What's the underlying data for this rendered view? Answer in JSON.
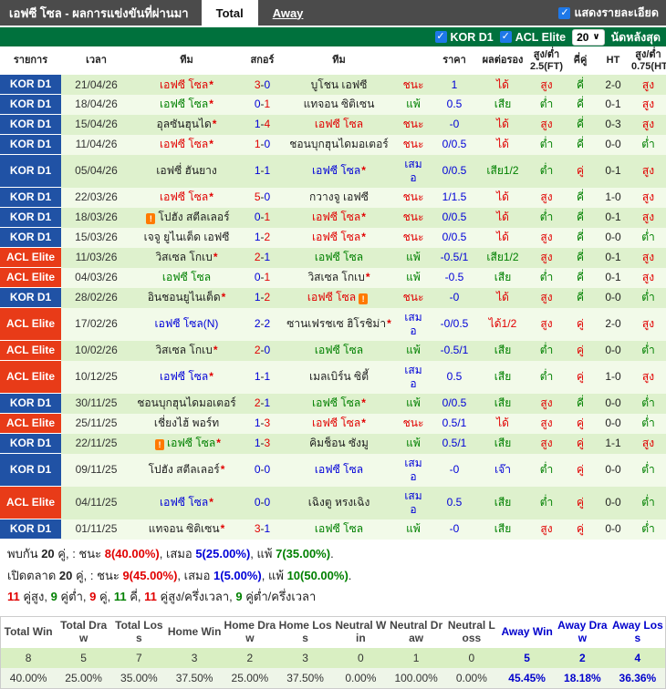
{
  "colors": {
    "titlebar_bg": "#4b4b4b",
    "filterbar_bg": "#00713d",
    "kor_d1_bg": "#2052a5",
    "acl_elite_bg": "#e83b18",
    "win_red": "#e10000",
    "loss_green": "#008000",
    "draw_blue": "#0000d8",
    "checkbox_blue": "#1e78e8",
    "row_odd_bg": "#def1cd",
    "row_even_bg": "#f2fae9"
  },
  "icons": {
    "check": "✓",
    "chevron_down": "∨",
    "card": "!"
  },
  "titlebar": {
    "title": "เอฟซี โซล - ผลการแข่งขันที่ผ่านมา",
    "tabs": [
      {
        "label": "Total",
        "active": true
      },
      {
        "label": "Away",
        "active": false
      }
    ],
    "detail_checkbox": {
      "label": "แสดงรายละเอียด",
      "checked": true
    }
  },
  "filterbar": {
    "leagues": [
      {
        "label": "KOR D1",
        "checked": true
      },
      {
        "label": "ACL Elite",
        "checked": true
      }
    ],
    "count_select": {
      "value": "20"
    },
    "suffix": "นัดหลังสุด"
  },
  "table": {
    "columns": [
      "รายการ",
      "เวลา",
      "ทีม",
      "สกอร์",
      "ทีม",
      "",
      "ราคา",
      "ผลต่อรอง",
      "สูง/ต่ำ 2.5(FT)",
      "คี่คู่",
      "HT",
      "สูง/ต่ำ 0.75(HT)"
    ],
    "rows": [
      {
        "lg": "KOR D1",
        "date": "21/04/26",
        "home": {
          "n": "เอฟซี โซล",
          "star": true,
          "c": "red"
        },
        "score": [
          "3",
          "0",
          "red",
          "blue"
        ],
        "away": {
          "n": "บูโชน เอฟซี",
          "c": "black"
        },
        "res": "ชนะ",
        "price": "1",
        "hres": "ได้",
        "ou25": "สูง",
        "oe": "คี่",
        "ht": "2-0",
        "ou075": "สูง"
      },
      {
        "lg": "KOR D1",
        "date": "18/04/26",
        "home": {
          "n": "เอฟซี โซล",
          "star": true,
          "c": "green"
        },
        "score": [
          "0",
          "1",
          "blue",
          "red"
        ],
        "away": {
          "n": "แทจอน ซิติเซน",
          "c": "black"
        },
        "res": "แพ้",
        "price": "0.5",
        "hres": "เสีย",
        "ou25": "ต่ำ",
        "oe": "คี่",
        "ht": "0-1",
        "ou075": "สูง"
      },
      {
        "lg": "KOR D1",
        "date": "15/04/26",
        "home": {
          "n": "อุลซันฮุนได",
          "star": true,
          "c": "black"
        },
        "score": [
          "1",
          "4",
          "blue",
          "red"
        ],
        "away": {
          "n": "เอฟซี โซล",
          "c": "red"
        },
        "res": "ชนะ",
        "price": "-0",
        "hres": "ได้",
        "ou25": "สูง",
        "oe": "คี่",
        "ht": "0-3",
        "ou075": "สูง"
      },
      {
        "lg": "KOR D1",
        "date": "11/04/26",
        "home": {
          "n": "เอฟซี โซล",
          "star": true,
          "c": "red"
        },
        "score": [
          "1",
          "0",
          "red",
          "blue"
        ],
        "away": {
          "n": "ชอนบุกฮุนไดมอเตอร์",
          "c": "black"
        },
        "res": "ชนะ",
        "price": "0/0.5",
        "hres": "ได้",
        "ou25": "ต่ำ",
        "oe": "คี่",
        "ht": "0-0",
        "ou075": "ต่ำ"
      },
      {
        "lg": "KOR D1",
        "date": "05/04/26",
        "home": {
          "n": "เอฟซี่ ฮันยาง",
          "c": "black"
        },
        "score": [
          "1",
          "1",
          "blue",
          "blue"
        ],
        "away": {
          "n": "เอฟซี โซล",
          "star": true,
          "c": "blue"
        },
        "res": "เสมอ",
        "price": "0/0.5",
        "hres": "เสีย1/2",
        "ou25": "ต่ำ",
        "oe": "คู่",
        "ht": "0-1",
        "ou075": "สูง"
      },
      {
        "lg": "KOR D1",
        "date": "22/03/26",
        "home": {
          "n": "เอฟซี โซล",
          "star": true,
          "c": "red"
        },
        "score": [
          "5",
          "0",
          "red",
          "blue"
        ],
        "away": {
          "n": "กวางจู เอฟซี",
          "c": "black"
        },
        "res": "ชนะ",
        "price": "1/1.5",
        "hres": "ได้",
        "ou25": "สูง",
        "oe": "คี่",
        "ht": "1-0",
        "ou075": "สูง"
      },
      {
        "lg": "KOR D1",
        "date": "18/03/26",
        "home": {
          "n": "โปฮัง สตีลเลอร์",
          "c": "black",
          "icon": "before"
        },
        "score": [
          "0",
          "1",
          "blue",
          "red"
        ],
        "away": {
          "n": "เอฟซี โซล",
          "star": true,
          "c": "red"
        },
        "res": "ชนะ",
        "price": "0/0.5",
        "hres": "ได้",
        "ou25": "ต่ำ",
        "oe": "คี่",
        "ht": "0-1",
        "ou075": "สูง"
      },
      {
        "lg": "KOR D1",
        "date": "15/03/26",
        "home": {
          "n": "เจจู ยูไนเต็ด เอฟซี",
          "c": "black"
        },
        "score": [
          "1",
          "2",
          "blue",
          "red"
        ],
        "away": {
          "n": "เอฟซี โซล",
          "star": true,
          "c": "red"
        },
        "res": "ชนะ",
        "price": "0/0.5",
        "hres": "ได้",
        "ou25": "สูง",
        "oe": "คี่",
        "ht": "0-0",
        "ou075": "ต่ำ"
      },
      {
        "lg": "ACL Elite",
        "date": "11/03/26",
        "home": {
          "n": "วิสเซล โกเบ",
          "star": true,
          "c": "black"
        },
        "score": [
          "2",
          "1",
          "red",
          "blue"
        ],
        "away": {
          "n": "เอฟซี โซล",
          "c": "green"
        },
        "res": "แพ้",
        "price": "-0.5/1",
        "hres": "เสีย1/2",
        "ou25": "สูง",
        "oe": "คี่",
        "ht": "0-1",
        "ou075": "สูง"
      },
      {
        "lg": "ACL Elite",
        "date": "04/03/26",
        "home": {
          "n": "เอฟซี โซล",
          "c": "green"
        },
        "score": [
          "0",
          "1",
          "blue",
          "red"
        ],
        "away": {
          "n": "วิสเซล โกเบ",
          "star": true,
          "c": "black"
        },
        "res": "แพ้",
        "price": "-0.5",
        "hres": "เสีย",
        "ou25": "ต่ำ",
        "oe": "คี่",
        "ht": "0-1",
        "ou075": "สูง"
      },
      {
        "lg": "KOR D1",
        "date": "28/02/26",
        "home": {
          "n": "อินชอนยูไนเต็ด",
          "star": true,
          "c": "black"
        },
        "score": [
          "1",
          "2",
          "blue",
          "red"
        ],
        "away": {
          "n": "เอฟซี โซล",
          "c": "red",
          "icon": "after"
        },
        "res": "ชนะ",
        "price": "-0",
        "hres": "ได้",
        "ou25": "สูง",
        "oe": "คี่",
        "ht": "0-0",
        "ou075": "ต่ำ"
      },
      {
        "lg": "ACL Elite",
        "date": "17/02/26",
        "home": {
          "n": "เอฟซี โซล(N)",
          "c": "blue"
        },
        "score": [
          "2",
          "2",
          "blue",
          "blue"
        ],
        "away": {
          "n": "ซานเฟรชเซ ฮิโรชิม่า",
          "star": true,
          "c": "black"
        },
        "res": "เสมอ",
        "price": "-0/0.5",
        "hres": "ได้1/2",
        "ou25": "สูง",
        "oe": "คู่",
        "ht": "2-0",
        "ou075": "สูง"
      },
      {
        "lg": "ACL Elite",
        "date": "10/02/26",
        "home": {
          "n": "วิสเซล โกเบ",
          "star": true,
          "c": "black"
        },
        "score": [
          "2",
          "0",
          "red",
          "blue"
        ],
        "away": {
          "n": "เอฟซี โซล",
          "c": "green"
        },
        "res": "แพ้",
        "price": "-0.5/1",
        "hres": "เสีย",
        "ou25": "ต่ำ",
        "oe": "คู่",
        "ht": "0-0",
        "ou075": "ต่ำ"
      },
      {
        "lg": "ACL Elite",
        "date": "10/12/25",
        "home": {
          "n": "เอฟซี โซล",
          "star": true,
          "c": "blue"
        },
        "score": [
          "1",
          "1",
          "blue",
          "blue"
        ],
        "away": {
          "n": "เมลเบิร์น ซิตี้",
          "c": "black"
        },
        "res": "เสมอ",
        "price": "0.5",
        "hres": "เสีย",
        "ou25": "ต่ำ",
        "oe": "คู่",
        "ht": "1-0",
        "ou075": "สูง"
      },
      {
        "lg": "KOR D1",
        "date": "30/11/25",
        "home": {
          "n": "ชอนบุกฮุนไดมอเตอร์",
          "c": "black"
        },
        "score": [
          "2",
          "1",
          "red",
          "blue"
        ],
        "away": {
          "n": "เอฟซี โซล",
          "star": true,
          "c": "green"
        },
        "res": "แพ้",
        "price": "0/0.5",
        "hres": "เสีย",
        "ou25": "สูง",
        "oe": "คี่",
        "ht": "0-0",
        "ou075": "ต่ำ"
      },
      {
        "lg": "ACL Elite",
        "date": "25/11/25",
        "home": {
          "n": "เชี่ยงไฮ้ พอร์ท",
          "c": "black"
        },
        "score": [
          "1",
          "3",
          "blue",
          "red"
        ],
        "away": {
          "n": "เอฟซี โซล",
          "star": true,
          "c": "red"
        },
        "res": "ชนะ",
        "price": "0.5/1",
        "hres": "ได้",
        "ou25": "สูง",
        "oe": "คู่",
        "ht": "0-0",
        "ou075": "ต่ำ"
      },
      {
        "lg": "KOR D1",
        "date": "22/11/25",
        "home": {
          "n": "เอฟซี โซล",
          "star": true,
          "c": "green",
          "icon": "before"
        },
        "score": [
          "1",
          "3",
          "blue",
          "red"
        ],
        "away": {
          "n": "คิมช็อน ซังมู",
          "c": "black"
        },
        "res": "แพ้",
        "price": "0.5/1",
        "hres": "เสีย",
        "ou25": "สูง",
        "oe": "คู่",
        "ht": "1-1",
        "ou075": "สูง"
      },
      {
        "lg": "KOR D1",
        "date": "09/11/25",
        "home": {
          "n": "โปฮัง สตีลเลอร์",
          "star": true,
          "c": "black"
        },
        "score": [
          "0",
          "0",
          "blue",
          "blue"
        ],
        "away": {
          "n": "เอฟซี โซล",
          "c": "blue"
        },
        "res": "เสมอ",
        "price": "-0",
        "hres": "เจ๊า",
        "ou25": "ต่ำ",
        "oe": "คู่",
        "ht": "0-0",
        "ou075": "ต่ำ"
      },
      {
        "lg": "ACL Elite",
        "date": "04/11/25",
        "home": {
          "n": "เอฟซี โซล",
          "star": true,
          "c": "blue"
        },
        "score": [
          "0",
          "0",
          "blue",
          "blue"
        ],
        "away": {
          "n": "เฉิงตู หรงเฉิง",
          "c": "black"
        },
        "res": "เสมอ",
        "price": "0.5",
        "hres": "เสีย",
        "ou25": "ต่ำ",
        "oe": "คู่",
        "ht": "0-0",
        "ou075": "ต่ำ"
      },
      {
        "lg": "KOR D1",
        "date": "01/11/25",
        "home": {
          "n": "แทจอน ซิติเซน",
          "star": true,
          "c": "black"
        },
        "score": [
          "3",
          "1",
          "red",
          "blue"
        ],
        "away": {
          "n": "เอฟซี โซล",
          "c": "green"
        },
        "res": "แพ้",
        "price": "-0",
        "hres": "เสีย",
        "ou25": "สูง",
        "oe": "คู่",
        "ht": "0-0",
        "ou075": "ต่ำ"
      }
    ]
  },
  "summary": {
    "lines": [
      [
        {
          "t": "พบกัน ",
          "c": "dark",
          "b": false
        },
        {
          "t": "20",
          "c": "dark",
          "b": true
        },
        {
          "t": " คู่, : ชนะ ",
          "c": "dark",
          "b": false
        },
        {
          "t": "8(40.00%)",
          "c": "red",
          "b": true
        },
        {
          "t": ", เสมอ ",
          "c": "dark",
          "b": false
        },
        {
          "t": "5(25.00%)",
          "c": "blue",
          "b": true
        },
        {
          "t": ", แพ้ ",
          "c": "dark",
          "b": false
        },
        {
          "t": "7(35.00%)",
          "c": "green",
          "b": true
        },
        {
          "t": ".",
          "c": "dark",
          "b": false
        }
      ],
      [
        {
          "t": "เปิดตลาด ",
          "c": "dark",
          "b": false
        },
        {
          "t": "20",
          "c": "dark",
          "b": true
        },
        {
          "t": " คู่, : ชนะ ",
          "c": "dark",
          "b": false
        },
        {
          "t": "9(45.00%)",
          "c": "red",
          "b": true
        },
        {
          "t": ", เสมอ ",
          "c": "dark",
          "b": false
        },
        {
          "t": "1(5.00%)",
          "c": "blue",
          "b": true
        },
        {
          "t": ", แพ้ ",
          "c": "dark",
          "b": false
        },
        {
          "t": "10(50.00%)",
          "c": "green",
          "b": true
        },
        {
          "t": ".",
          "c": "dark",
          "b": false
        }
      ],
      [
        {
          "t": "11",
          "c": "red",
          "b": true
        },
        {
          "t": " คู่สูง, ",
          "c": "dark",
          "b": false
        },
        {
          "t": "9",
          "c": "green",
          "b": true
        },
        {
          "t": " คู่ต่ำ, ",
          "c": "dark",
          "b": false
        },
        {
          "t": "9",
          "c": "red",
          "b": true
        },
        {
          "t": " คู่, ",
          "c": "dark",
          "b": false
        },
        {
          "t": "11",
          "c": "green",
          "b": true
        },
        {
          "t": " คี่, ",
          "c": "dark",
          "b": false
        },
        {
          "t": "11",
          "c": "red",
          "b": true
        },
        {
          "t": " คู่สูง/ครึ่งเวลา, ",
          "c": "dark",
          "b": false
        },
        {
          "t": "9",
          "c": "green",
          "b": true
        },
        {
          "t": " คู่ต่ำ/ครึ่งเวลา",
          "c": "dark",
          "b": false
        }
      ]
    ]
  },
  "stats": {
    "columns": [
      {
        "label": "Total Win",
        "count": "8",
        "pct": "40.00%",
        "highlight": false
      },
      {
        "label": "Total Draw",
        "count": "5",
        "pct": "25.00%",
        "highlight": false
      },
      {
        "label": "Total Loss",
        "count": "7",
        "pct": "35.00%",
        "highlight": false
      },
      {
        "label": "Home Win",
        "count": "3",
        "pct": "37.50%",
        "highlight": false
      },
      {
        "label": "Home Draw",
        "count": "2",
        "pct": "25.00%",
        "highlight": false
      },
      {
        "label": "Home Loss",
        "count": "3",
        "pct": "37.50%",
        "highlight": false
      },
      {
        "label": "Neutral Win",
        "count": "0",
        "pct": "0.00%",
        "highlight": false
      },
      {
        "label": "Neutral Draw",
        "count": "1",
        "pct": "100.00%",
        "highlight": false
      },
      {
        "label": "Neutral Loss",
        "count": "0",
        "pct": "0.00%",
        "highlight": false
      },
      {
        "label": "Away Win",
        "count": "5",
        "pct": "45.45%",
        "highlight": true
      },
      {
        "label": "Away Draw",
        "count": "2",
        "pct": "18.18%",
        "highlight": true
      },
      {
        "label": "Away Loss",
        "count": "4",
        "pct": "36.36%",
        "highlight": true
      }
    ]
  }
}
